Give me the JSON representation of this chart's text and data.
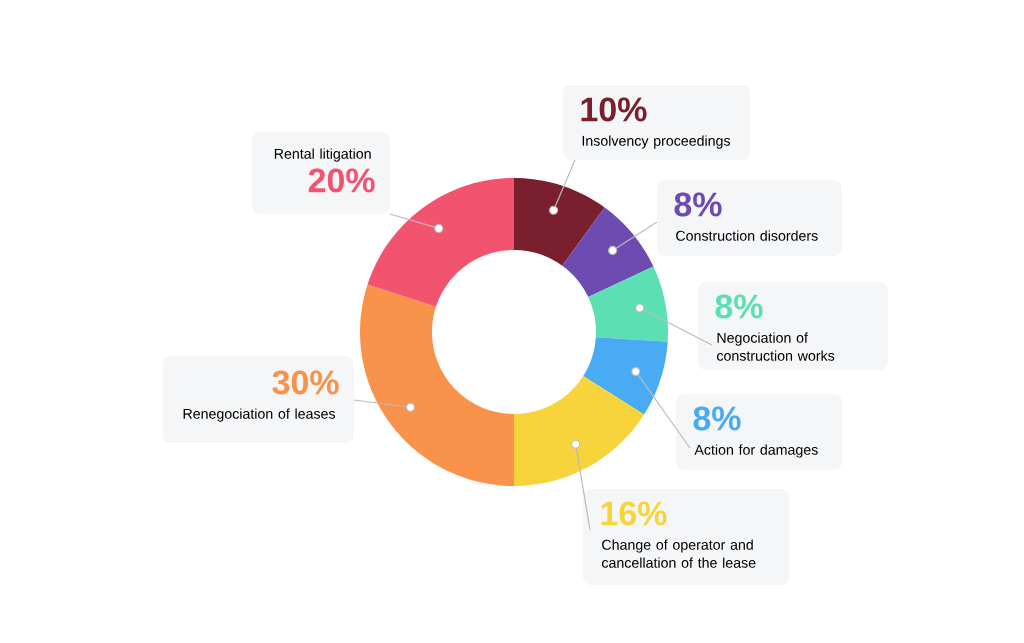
{
  "chart_data": {
    "type": "donut",
    "categories": [
      "Insolvency proceedings",
      "Construction disorders",
      "Negociation of construction works",
      "Action for damages",
      "Change of operator and cancellation of the lease",
      "Renegociation of leases",
      "Rental litigation"
    ],
    "values": [
      10,
      8,
      8,
      8,
      16,
      30,
      20
    ],
    "value_labels": [
      "10%",
      "8%",
      "8%",
      "8%",
      "16%",
      "30%",
      "20%"
    ],
    "colors": [
      "#7a1f2e",
      "#6d4bb0",
      "#5ddfb4",
      "#4aabf5",
      "#f7d43c",
      "#f9924a",
      "#f2536f"
    ]
  }
}
